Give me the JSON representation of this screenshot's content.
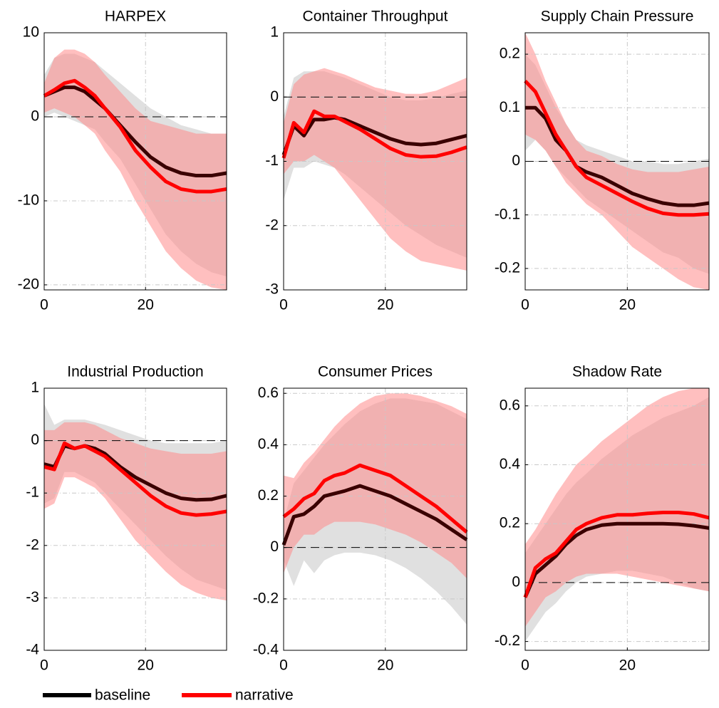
{
  "chart_data": [
    {
      "type": "line",
      "title": "HARPEX",
      "x": [
        0,
        2,
        4,
        6,
        8,
        10,
        12,
        15,
        18,
        21,
        24,
        27,
        30,
        33,
        36
      ],
      "xlim": [
        0,
        36
      ],
      "xticks": [
        0,
        20
      ],
      "ylim": [
        -20.6,
        10
      ],
      "yticks": [
        -20,
        -10,
        0,
        10
      ],
      "grid": true,
      "hline": 0,
      "series": [
        {
          "name": "baseline",
          "color": "#3a0000",
          "values": [
            2.5,
            3,
            3.5,
            3.5,
            3,
            2,
            1,
            -1,
            -3,
            -4.8,
            -6,
            -6.7,
            -7,
            -7,
            -6.7
          ]
        },
        {
          "name": "narrative",
          "color": "#ff0000",
          "values": [
            2.5,
            3.2,
            4,
            4.3,
            3.5,
            2.5,
            1,
            -1.2,
            -4,
            -6,
            -7.7,
            -8.6,
            -8.9,
            -8.9,
            -8.6
          ]
        }
      ],
      "bands": [
        {
          "color": "#e0e0e0",
          "lower": [
            0,
            0.5,
            0,
            -0.5,
            -1,
            -1.5,
            -3,
            -5,
            -8,
            -11,
            -14,
            -16,
            -17.5,
            -18.5,
            -19
          ],
          "upper": [
            5,
            7,
            7.5,
            7.5,
            7,
            6.5,
            5.5,
            4,
            2.5,
            1,
            0,
            -1,
            -1.5,
            -2,
            -2
          ]
        },
        {
          "color": "#ff8a8a",
          "lower": [
            0.5,
            1,
            0.5,
            0,
            -1,
            -2,
            -4,
            -6.5,
            -10,
            -13,
            -16,
            -18,
            -19.5,
            -20.3,
            -20.6
          ],
          "upper": [
            4,
            7,
            8,
            8,
            7.5,
            6.5,
            5,
            3,
            1,
            -0.5,
            -1,
            -1.5,
            -2,
            -2,
            -2
          ]
        }
      ]
    },
    {
      "type": "line",
      "title": "Container Throughput",
      "x": [
        0,
        2,
        4,
        6,
        8,
        10,
        12,
        15,
        18,
        21,
        24,
        27,
        30,
        33,
        36
      ],
      "xlim": [
        0,
        36
      ],
      "xticks": [
        0,
        20
      ],
      "ylim": [
        -3,
        1
      ],
      "yticks": [
        -3,
        -2,
        -1,
        0,
        1
      ],
      "grid": true,
      "hline": 0,
      "series": [
        {
          "name": "baseline",
          "color": "#3a0000",
          "values": [
            -0.9,
            -0.45,
            -0.6,
            -0.35,
            -0.35,
            -0.32,
            -0.35,
            -0.45,
            -0.55,
            -0.65,
            -0.72,
            -0.74,
            -0.72,
            -0.66,
            -0.6
          ]
        },
        {
          "name": "narrative",
          "color": "#ff0000",
          "values": [
            -0.95,
            -0.4,
            -0.55,
            -0.22,
            -0.3,
            -0.3,
            -0.38,
            -0.5,
            -0.65,
            -0.8,
            -0.9,
            -0.93,
            -0.92,
            -0.86,
            -0.78
          ]
        }
      ],
      "bands": [
        {
          "color": "#e0e0e0",
          "lower": [
            -1.6,
            -1.1,
            -1.1,
            -1.0,
            -1.05,
            -1.1,
            -1.2,
            -1.4,
            -1.6,
            -1.8,
            -2.0,
            -2.15,
            -2.3,
            -2.4,
            -2.5
          ],
          "upper": [
            -0.3,
            0.3,
            0.4,
            0.4,
            0.4,
            0.35,
            0.3,
            0.2,
            0.1,
            0.0,
            -0.05,
            -0.05,
            -0.02,
            0.05,
            0.1
          ]
        },
        {
          "color": "#ff8a8a",
          "lower": [
            -1.2,
            -1.0,
            -1.0,
            -0.9,
            -1.0,
            -1.1,
            -1.3,
            -1.6,
            -1.9,
            -2.2,
            -2.4,
            -2.55,
            -2.6,
            -2.65,
            -2.7
          ],
          "upper": [
            -0.4,
            0.2,
            0.35,
            0.4,
            0.45,
            0.4,
            0.35,
            0.25,
            0.15,
            0.1,
            0.05,
            0.05,
            0.1,
            0.2,
            0.3
          ]
        }
      ]
    },
    {
      "type": "line",
      "title": "Supply Chain Pressure",
      "x": [
        0,
        2,
        4,
        6,
        8,
        10,
        12,
        15,
        18,
        21,
        24,
        27,
        30,
        33,
        36
      ],
      "xlim": [
        0,
        36
      ],
      "xticks": [
        0,
        20
      ],
      "ylim": [
        -0.24,
        0.24
      ],
      "yticks": [
        -0.2,
        -0.1,
        0,
        0.1,
        0.2
      ],
      "grid": true,
      "hline": 0,
      "series": [
        {
          "name": "baseline",
          "color": "#3a0000",
          "values": [
            0.1,
            0.1,
            0.08,
            0.04,
            0.02,
            -0.01,
            -0.02,
            -0.03,
            -0.045,
            -0.06,
            -0.07,
            -0.078,
            -0.082,
            -0.082,
            -0.078
          ]
        },
        {
          "name": "narrative",
          "color": "#ff0000",
          "values": [
            0.15,
            0.13,
            0.09,
            0.05,
            0.02,
            -0.01,
            -0.03,
            -0.045,
            -0.06,
            -0.075,
            -0.088,
            -0.097,
            -0.1,
            -0.1,
            -0.098
          ]
        }
      ],
      "bands": [
        {
          "color": "#e0e0e0",
          "lower": [
            0.02,
            0.04,
            0.02,
            -0.01,
            -0.03,
            -0.05,
            -0.07,
            -0.09,
            -0.11,
            -0.13,
            -0.15,
            -0.17,
            -0.18,
            -0.2,
            -0.21
          ],
          "upper": [
            0.2,
            0.18,
            0.14,
            0.1,
            0.07,
            0.04,
            0.03,
            0.02,
            0.01,
            0.0,
            0.0,
            -0.005,
            -0.005,
            0.0,
            0.005
          ]
        },
        {
          "color": "#ff8a8a",
          "lower": [
            0.05,
            0.04,
            0.02,
            -0.01,
            -0.04,
            -0.06,
            -0.08,
            -0.1,
            -0.13,
            -0.16,
            -0.18,
            -0.2,
            -0.22,
            -0.235,
            -0.24
          ],
          "upper": [
            0.24,
            0.2,
            0.15,
            0.11,
            0.07,
            0.04,
            0.02,
            0.01,
            -0.005,
            -0.015,
            -0.02,
            -0.02,
            -0.02,
            -0.015,
            -0.01
          ]
        }
      ]
    },
    {
      "type": "line",
      "title": "Industrial Production",
      "x": [
        0,
        2,
        4,
        6,
        8,
        10,
        12,
        15,
        18,
        21,
        24,
        27,
        30,
        33,
        36
      ],
      "xlim": [
        0,
        36
      ],
      "xticks": [
        0,
        20
      ],
      "ylim": [
        -4,
        1
      ],
      "yticks": [
        -4,
        -3,
        -2,
        -1,
        0,
        1
      ],
      "grid": true,
      "hline": 0,
      "series": [
        {
          "name": "baseline",
          "color": "#3a0000",
          "values": [
            -0.45,
            -0.5,
            -0.1,
            -0.15,
            -0.1,
            -0.15,
            -0.25,
            -0.5,
            -0.7,
            -0.85,
            -1.0,
            -1.1,
            -1.13,
            -1.12,
            -1.05
          ]
        },
        {
          "name": "narrative",
          "color": "#ff0000",
          "values": [
            -0.5,
            -0.55,
            -0.05,
            -0.15,
            -0.1,
            -0.2,
            -0.3,
            -0.55,
            -0.8,
            -1.05,
            -1.25,
            -1.38,
            -1.42,
            -1.4,
            -1.35
          ]
        }
      ],
      "bands": [
        {
          "color": "#e0e0e0",
          "lower": [
            -1.2,
            -1.1,
            -0.6,
            -0.6,
            -0.7,
            -0.8,
            -1.0,
            -1.3,
            -1.6,
            -1.9,
            -2.2,
            -2.45,
            -2.65,
            -2.75,
            -2.85
          ],
          "upper": [
            0.7,
            0.3,
            0.4,
            0.4,
            0.4,
            0.35,
            0.3,
            0.2,
            0.1,
            0.0,
            -0.05,
            -0.05,
            -0.05,
            -0.05,
            0.0
          ]
        },
        {
          "color": "#ff8a8a",
          "lower": [
            -1.3,
            -1.2,
            -0.7,
            -0.7,
            -0.8,
            -0.9,
            -1.1,
            -1.5,
            -1.9,
            -2.2,
            -2.5,
            -2.75,
            -2.9,
            -3.0,
            -3.05
          ],
          "upper": [
            0.2,
            0.2,
            0.35,
            0.35,
            0.35,
            0.3,
            0.2,
            0.05,
            -0.05,
            -0.15,
            -0.2,
            -0.25,
            -0.25,
            -0.25,
            -0.2
          ]
        }
      ]
    },
    {
      "type": "line",
      "title": "Consumer Prices",
      "x": [
        0,
        2,
        4,
        6,
        8,
        10,
        12,
        15,
        18,
        21,
        24,
        27,
        30,
        33,
        36
      ],
      "xlim": [
        0,
        36
      ],
      "xticks": [
        0,
        20
      ],
      "ylim": [
        -0.4,
        0.62
      ],
      "yticks": [
        -0.4,
        -0.2,
        0,
        0.2,
        0.4,
        0.6
      ],
      "grid": true,
      "hline": 0,
      "series": [
        {
          "name": "baseline",
          "color": "#3a0000",
          "values": [
            0.01,
            0.12,
            0.13,
            0.16,
            0.2,
            0.21,
            0.22,
            0.24,
            0.22,
            0.2,
            0.17,
            0.14,
            0.11,
            0.07,
            0.03
          ]
        },
        {
          "name": "narrative",
          "color": "#ff0000",
          "values": [
            0.12,
            0.15,
            0.19,
            0.21,
            0.26,
            0.28,
            0.29,
            0.32,
            0.3,
            0.28,
            0.24,
            0.2,
            0.16,
            0.11,
            0.06
          ]
        }
      ],
      "bands": [
        {
          "color": "#e0e0e0",
          "lower": [
            -0.05,
            -0.15,
            -0.05,
            -0.1,
            -0.05,
            -0.03,
            -0.02,
            -0.02,
            -0.03,
            -0.05,
            -0.08,
            -0.12,
            -0.17,
            -0.23,
            -0.3
          ],
          "upper": [
            0.1,
            0.25,
            0.3,
            0.35,
            0.4,
            0.44,
            0.48,
            0.53,
            0.56,
            0.58,
            0.58,
            0.57,
            0.56,
            0.53,
            0.5
          ]
        },
        {
          "color": "#ff8a8a",
          "lower": [
            -0.1,
            0.0,
            0.05,
            0.05,
            0.08,
            0.1,
            0.1,
            0.1,
            0.09,
            0.07,
            0.05,
            0.02,
            -0.02,
            -0.06,
            -0.12
          ],
          "upper": [
            0.28,
            0.27,
            0.33,
            0.37,
            0.42,
            0.47,
            0.51,
            0.56,
            0.59,
            0.6,
            0.6,
            0.59,
            0.57,
            0.55,
            0.52
          ]
        }
      ]
    },
    {
      "type": "line",
      "title": "Shadow Rate",
      "x": [
        0,
        2,
        4,
        6,
        8,
        10,
        12,
        15,
        18,
        21,
        24,
        27,
        30,
        33,
        36
      ],
      "xlim": [
        0,
        36
      ],
      "xticks": [
        0,
        20
      ],
      "ylim": [
        -0.23,
        0.66
      ],
      "yticks": [
        -0.2,
        0,
        0.2,
        0.4,
        0.6
      ],
      "grid": true,
      "hline": 0,
      "series": [
        {
          "name": "baseline",
          "color": "#3a0000",
          "values": [
            -0.05,
            0.03,
            0.06,
            0.09,
            0.13,
            0.16,
            0.18,
            0.195,
            0.2,
            0.2,
            0.2,
            0.2,
            0.198,
            0.193,
            0.185
          ]
        },
        {
          "name": "narrative",
          "color": "#ff0000",
          "values": [
            -0.05,
            0.05,
            0.08,
            0.1,
            0.14,
            0.18,
            0.2,
            0.22,
            0.23,
            0.23,
            0.235,
            0.238,
            0.238,
            0.233,
            0.22
          ]
        }
      ],
      "bands": [
        {
          "color": "#e0e0e0",
          "lower": [
            -0.2,
            -0.15,
            -0.1,
            -0.07,
            -0.03,
            0.0,
            0.02,
            0.03,
            0.04,
            0.04,
            0.03,
            0.02,
            0.0,
            -0.02,
            -0.03
          ],
          "upper": [
            0.1,
            0.15,
            0.2,
            0.25,
            0.3,
            0.34,
            0.37,
            0.42,
            0.46,
            0.5,
            0.53,
            0.56,
            0.58,
            0.6,
            0.63
          ]
        },
        {
          "color": "#ff8a8a",
          "lower": [
            -0.15,
            -0.1,
            -0.05,
            -0.03,
            0.0,
            0.02,
            0.03,
            0.03,
            0.03,
            0.02,
            0.01,
            0.0,
            -0.01,
            -0.02,
            -0.03
          ],
          "upper": [
            0.13,
            0.18,
            0.24,
            0.3,
            0.35,
            0.4,
            0.43,
            0.48,
            0.52,
            0.56,
            0.6,
            0.63,
            0.65,
            0.66,
            0.66
          ]
        }
      ]
    }
  ]
}
